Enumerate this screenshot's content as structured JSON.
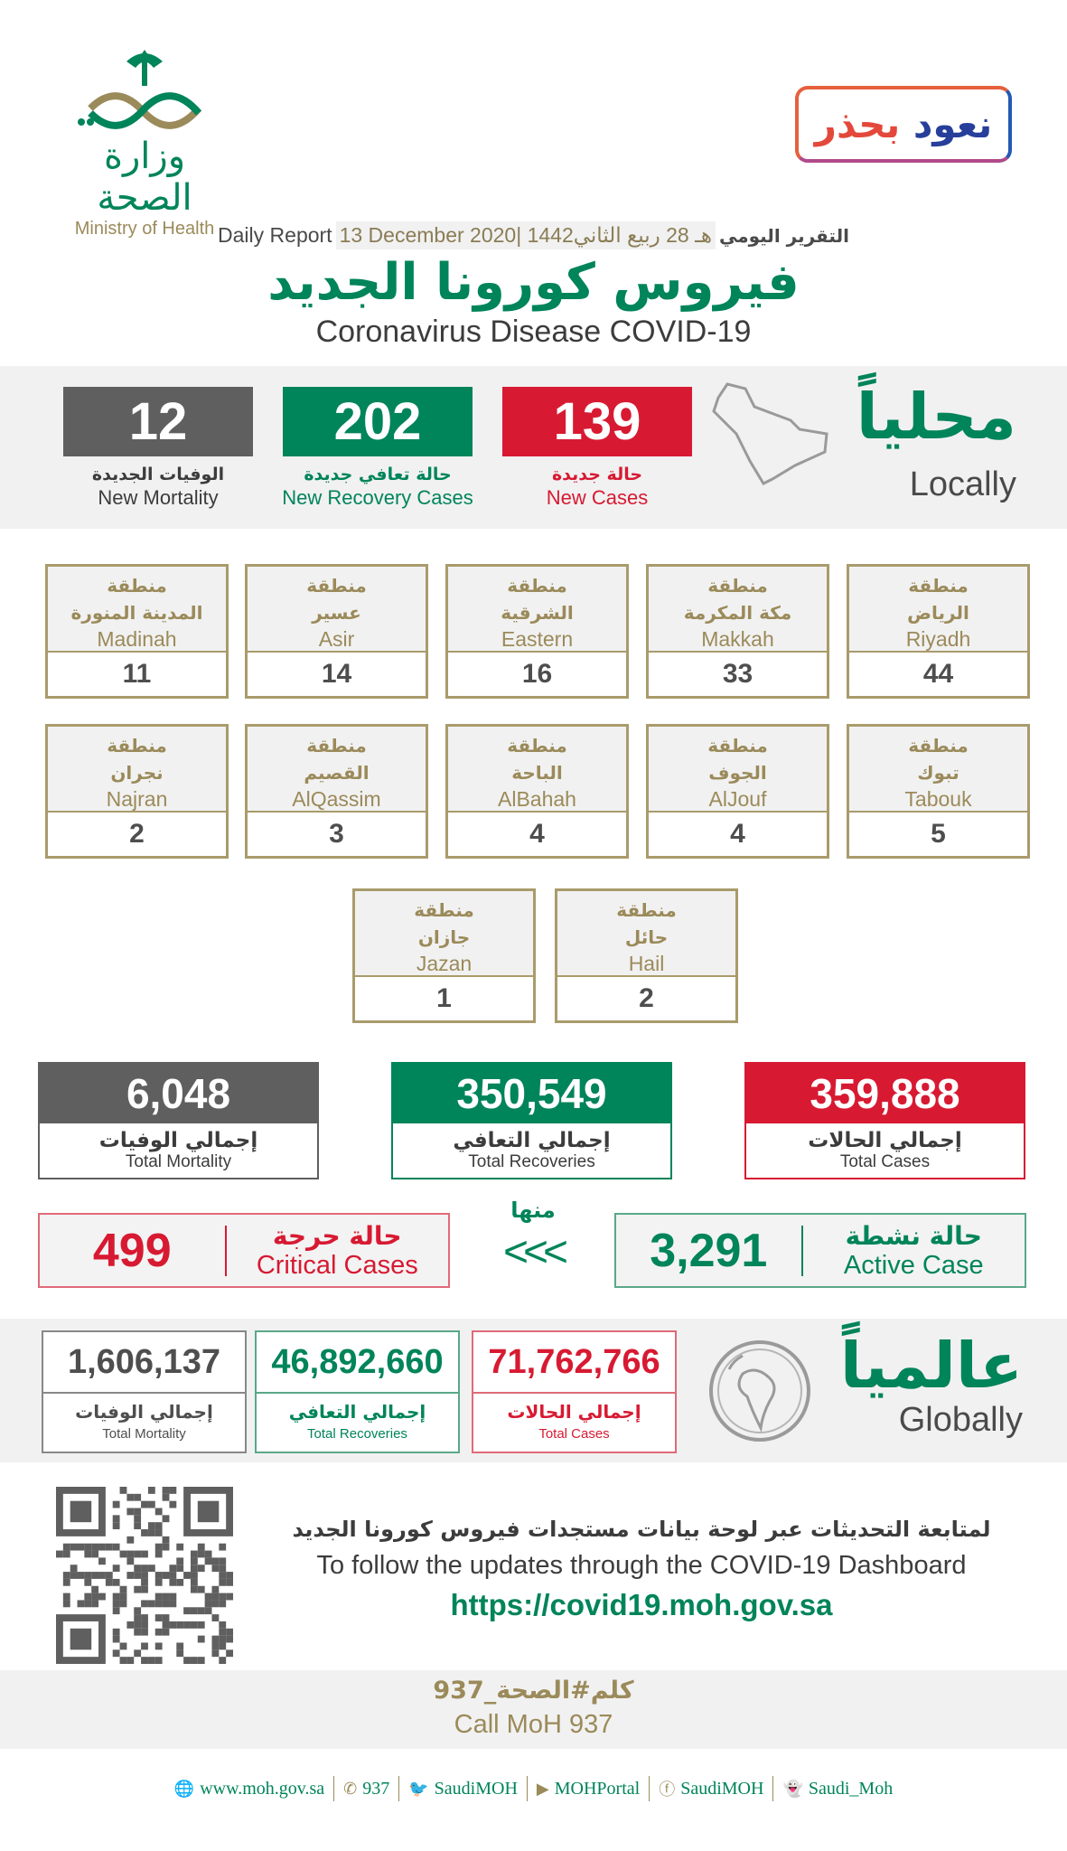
{
  "header": {
    "moh_logo_ar": "وزارة الصحة",
    "moh_logo_en": "Ministry of Health",
    "campaign_logo": {
      "word1": "نعود",
      "word2": "بحذر"
    },
    "daily_en": "Daily Report",
    "date": "13 December 2020| 1442هـ 28 ربيع الثاني",
    "daily_ar": "التقرير اليومي",
    "title_ar": "فيروس كورونا الجديد",
    "title_en": "Coronavirus Disease COVID-19"
  },
  "colors": {
    "red": "#d71a32",
    "green": "#00845a",
    "gray": "#5f5f5f",
    "gold": "#9b8a5a",
    "band": "#f1f1f1"
  },
  "local": {
    "title_ar": "محلياً",
    "title_en": "Locally",
    "icon": "saudi-map-icon",
    "new_cases": {
      "value": "139",
      "ar": "حالة جديدة",
      "en": "New Cases"
    },
    "new_recovery": {
      "value": "202",
      "ar": "حالة تعافي جديدة",
      "en": "New Recovery Cases"
    },
    "new_mortality": {
      "value": "12",
      "ar": "الوفيات الجديدة",
      "en": "New Mortality"
    }
  },
  "regions": [
    {
      "prefix": "منطقة",
      "ar": "الرياض",
      "en": "Riyadh",
      "value": "44"
    },
    {
      "prefix": "منطقة",
      "ar": "مكة المكرمة",
      "en": "Makkah",
      "value": "33"
    },
    {
      "prefix": "منطقة",
      "ar": "الشرقية",
      "en": "Eastern",
      "value": "16"
    },
    {
      "prefix": "منطقة",
      "ar": "عسير",
      "en": "Asir",
      "value": "14"
    },
    {
      "prefix": "منطقة",
      "ar": "المدينة المنورة",
      "en": "Madinah",
      "value": "11"
    },
    {
      "prefix": "منطقة",
      "ar": "تبوك",
      "en": "Tabouk",
      "value": "5"
    },
    {
      "prefix": "منطقة",
      "ar": "الجوف",
      "en": "AlJouf",
      "value": "4"
    },
    {
      "prefix": "منطقة",
      "ar": "الباحة",
      "en": "AlBahah",
      "value": "4"
    },
    {
      "prefix": "منطقة",
      "ar": "القصيم",
      "en": "AlQassim",
      "value": "3"
    },
    {
      "prefix": "منطقة",
      "ar": "نجران",
      "en": "Najran",
      "value": "2"
    },
    {
      "prefix": "منطقة",
      "ar": "حائل",
      "en": "Hail",
      "value": "2"
    },
    {
      "prefix": "منطقة",
      "ar": "جازان",
      "en": "Jazan",
      "value": "1"
    }
  ],
  "totals": {
    "cases": {
      "value": "359,888",
      "ar": "إجمالي الحالات",
      "en": "Total Cases"
    },
    "recoveries": {
      "value": "350,549",
      "ar": "إجمالي التعافي",
      "en": "Total Recoveries"
    },
    "mortality": {
      "value": "6,048",
      "ar": "إجمالي الوفيات",
      "en": "Total Mortality"
    }
  },
  "of_which": "منها",
  "arrows": "<<<",
  "active": {
    "value": "3,291",
    "ar": "حالة نشطة",
    "en": "Active Case"
  },
  "critical": {
    "value": "499",
    "ar": "حالة حرجة",
    "en": "Critical Cases"
  },
  "global": {
    "title_ar": "عالمياً",
    "title_en": "Globally",
    "icon": "globe-icon",
    "cases": {
      "value": "71,762,766",
      "ar": "إجمالي الحالات",
      "en": "Total Cases"
    },
    "recoveries": {
      "value": "46,892,660",
      "ar": "إجمالي التعافي",
      "en": "Total Recoveries"
    },
    "mortality": {
      "value": "1,606,137",
      "ar": "إجمالي الوفيات",
      "en": "Total Mortality"
    }
  },
  "dashboard": {
    "ar": "لمتابعة التحديثات عبر لوحة بيانات مستجدات فيروس كورونا الجديد",
    "en": "To follow the updates through the COVID-19 Dashboard",
    "url": "https://covid19.moh.gov.sa"
  },
  "call": {
    "ar": "كلم#الصحة_937",
    "en": "Call MoH 937"
  },
  "footer": [
    {
      "icon": "globe-icon",
      "label": "www.moh.gov.sa"
    },
    {
      "icon": "phone-icon",
      "label": "937"
    },
    {
      "icon": "twitter-icon",
      "label": "SaudiMOH"
    },
    {
      "icon": "youtube-icon",
      "label": "MOHPortal"
    },
    {
      "icon": "facebook-icon",
      "label": "SaudiMOH"
    },
    {
      "icon": "snapchat-icon",
      "label": "Saudi_Moh"
    }
  ]
}
